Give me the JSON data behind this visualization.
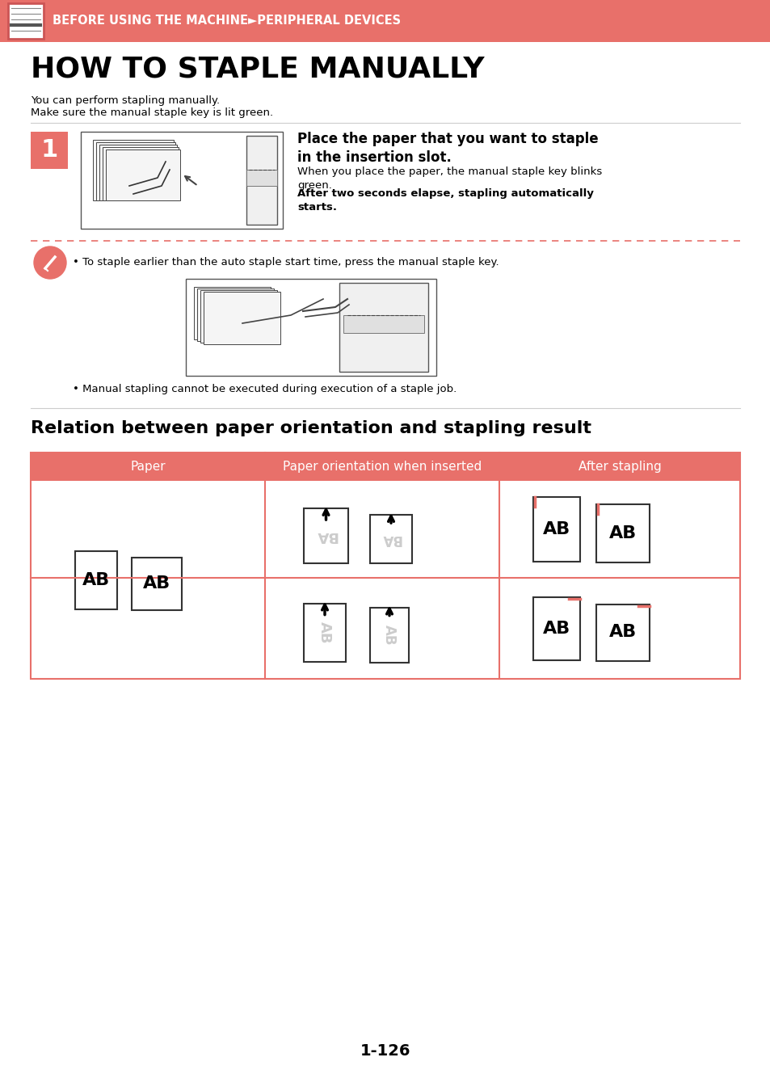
{
  "header_bg": "#E8706A",
  "header_text": "BEFORE USING THE MACHINE►PERIPHERAL DEVICES",
  "header_text_color": "#FFFFFF",
  "title": "HOW TO STAPLE MANUALLY",
  "subtitle1": "You can perform stapling manually.",
  "subtitle2": "Make sure the manual staple key is lit green.",
  "step1_bold": "Place the paper that you want to staple\nin the insertion slot.",
  "step1_text1": "When you place the paper, the manual staple key blinks\ngreen.",
  "step1_text2_bold": "After two seconds elapse, stapling automatically\nstarts.",
  "note1": "• To staple earlier than the auto staple start time, press the manual staple key.",
  "note2": "• Manual stapling cannot be executed during execution of a staple job.",
  "section2_title": "Relation between paper orientation and stapling result",
  "col1_header": "Paper",
  "col2_header": "Paper orientation when inserted",
  "col3_header": "After stapling",
  "table_header_bg": "#E8706A",
  "table_header_text": "#FFFFFF",
  "table_border": "#E8706A",
  "page_number": "1-126",
  "bg_color": "#FFFFFF",
  "text_color": "#000000",
  "divider_color": "#E8706A",
  "note_icon_color": "#E8706A",
  "staple_color": "#E8706A",
  "gray_text": "#CCCCCC",
  "line_color": "#CCCCCC"
}
